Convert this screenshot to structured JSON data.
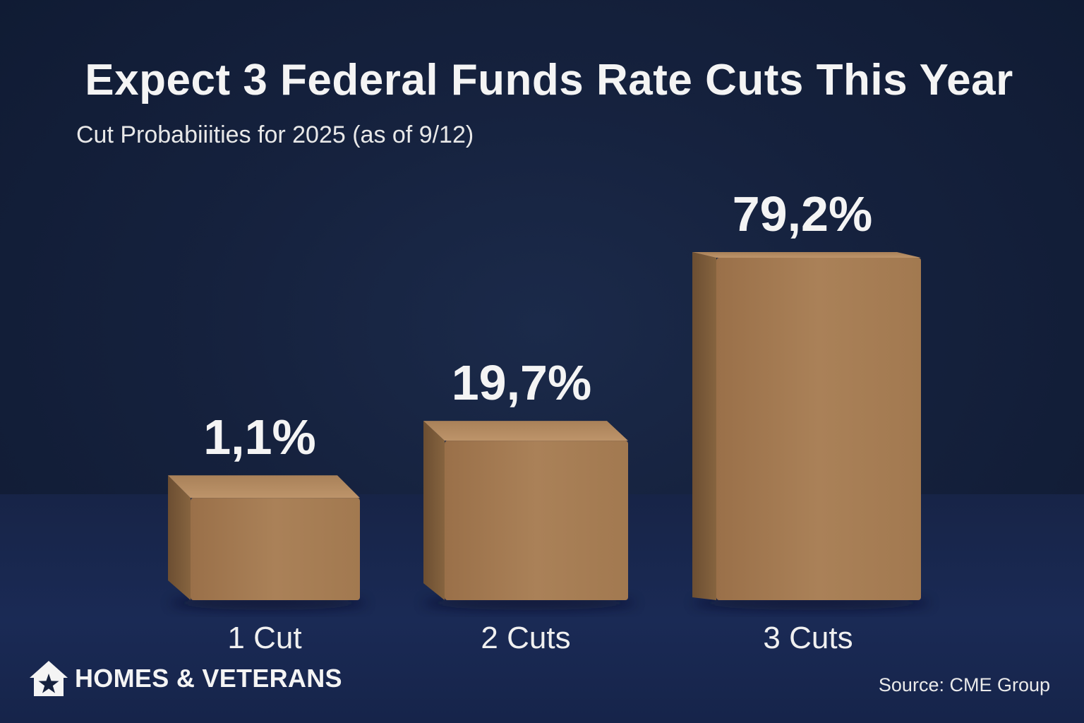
{
  "header": {
    "title": "Expect 3 Federal Funds Rate Cuts This Year",
    "subtitle": "Cut Probabiiities for 2025 (as of 9/12)"
  },
  "chart_data": {
    "type": "bar",
    "title": "Expect 3 Federal Funds Rate Cuts This Year",
    "subtitle": "Cut Probabiiities for 2025 (as of 9/12)",
    "categories": [
      "1 Cut",
      "2 Cuts",
      "3 Cuts"
    ],
    "values": [
      1.1,
      19.7,
      79.2
    ],
    "value_labels": [
      "1,1%",
      "19,7%",
      "79,2%"
    ],
    "unit": "%",
    "xlabel": "",
    "ylabel": "",
    "grid": false,
    "legend": "none",
    "bar_color": "#a57c54"
  },
  "footer": {
    "logo_text": "HOMES & VETERANS",
    "logo_icon": "house-star-icon",
    "source": "Source: CME Group"
  },
  "colors": {
    "background": "#15213d",
    "bar_front": "#a57c54",
    "bar_top": "#b89066",
    "bar_side": "#7a5a3b",
    "text": "#f4f4f4"
  }
}
